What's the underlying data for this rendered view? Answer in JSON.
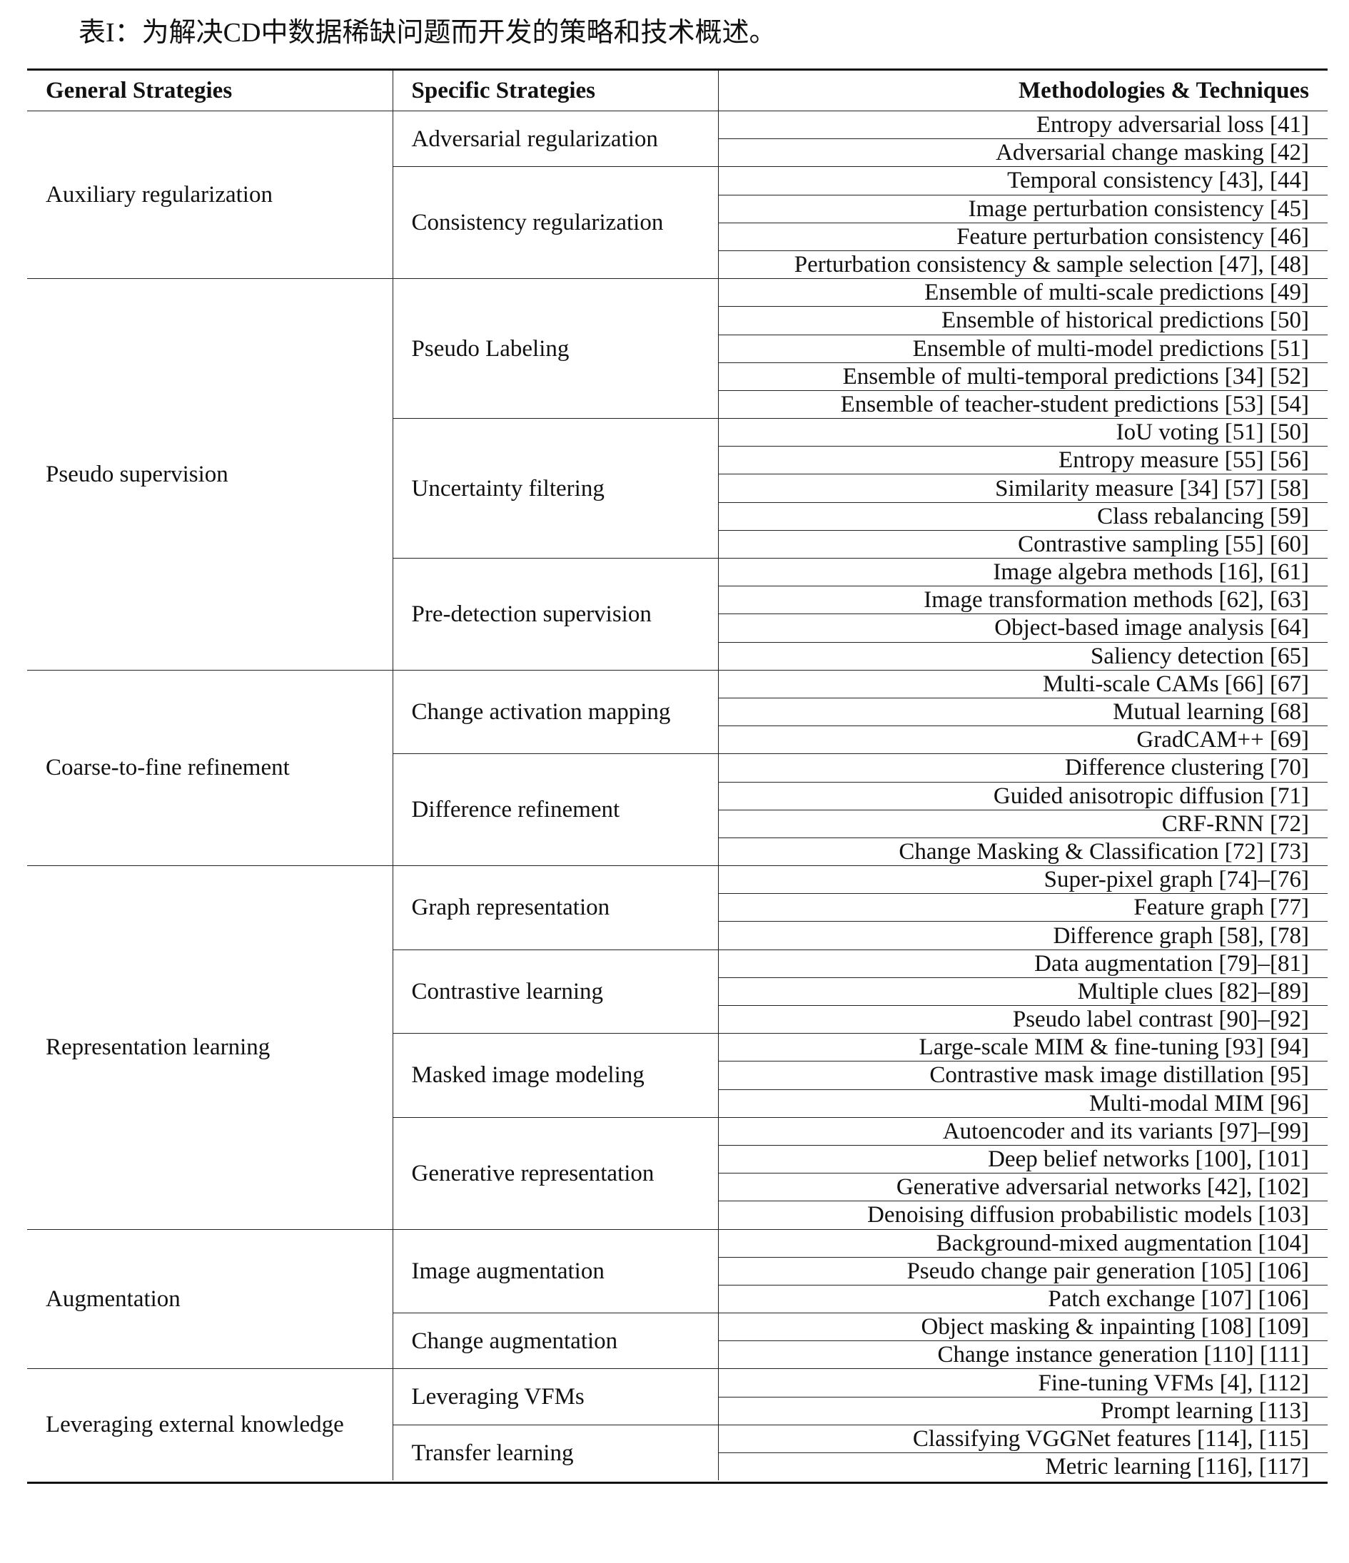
{
  "caption": "表I：为解决CD中数据稀缺问题而开发的策略和技术概述。",
  "headers": {
    "general": "General Strategies",
    "specific": "Specific Strategies",
    "methods": "Methodologies & Techniques"
  },
  "groups": [
    {
      "general": "Auxiliary regularization",
      "specifics": [
        {
          "name": "Adversarial regularization",
          "methods": [
            "Entropy adversarial loss [41]",
            "Adversarial change masking [42]"
          ]
        },
        {
          "name": "Consistency regularization",
          "methods": [
            "Temporal consistency [43], [44]",
            "Image perturbation consistency [45]",
            "Feature perturbation consistency [46]",
            "Perturbation consistency & sample selection [47], [48]"
          ]
        }
      ]
    },
    {
      "general": "Pseudo supervision",
      "specifics": [
        {
          "name": "Pseudo Labeling",
          "methods": [
            "Ensemble of multi-scale predictions [49]",
            "Ensemble of historical predictions [50]",
            "Ensemble of multi-model predictions [51]",
            "Ensemble of multi-temporal predictions [34] [52]",
            "Ensemble of teacher-student predictions [53] [54]"
          ]
        },
        {
          "name": "Uncertainty filtering",
          "methods": [
            "IoU voting [51] [50]",
            "Entropy measure [55] [56]",
            "Similarity measure [34] [57] [58]",
            "Class rebalancing [59]",
            "Contrastive sampling [55] [60]"
          ]
        },
        {
          "name": "Pre-detection supervision",
          "methods": [
            "Image algebra methods [16], [61]",
            "Image transformation methods [62], [63]",
            "Object-based image analysis [64]",
            "Saliency detection [65]"
          ]
        }
      ]
    },
    {
      "general": "Coarse-to-fine refinement",
      "specifics": [
        {
          "name": "Change activation mapping",
          "methods": [
            "Multi-scale CAMs [66] [67]",
            "Mutual learning [68]",
            "GradCAM++ [69]"
          ]
        },
        {
          "name": "Difference refinement",
          "methods": [
            "Difference clustering [70]",
            "Guided anisotropic diffusion [71]",
            "CRF-RNN [72]",
            "Change Masking & Classification [72] [73]"
          ]
        }
      ]
    },
    {
      "general": "Representation learning",
      "specifics": [
        {
          "name": "Graph representation",
          "methods": [
            "Super-pixel graph [74]–[76]",
            "Feature graph [77]",
            "Difference graph [58], [78]"
          ]
        },
        {
          "name": "Contrastive learning",
          "methods": [
            "Data augmentation [79]–[81]",
            "Multiple clues [82]–[89]",
            "Pseudo label contrast [90]–[92]"
          ]
        },
        {
          "name": "Masked image modeling",
          "methods": [
            "Large-scale MIM & fine-tuning [93] [94]",
            "Contrastive mask image distillation [95]",
            "Multi-modal MIM [96]"
          ]
        },
        {
          "name": "Generative representation",
          "methods": [
            "Autoencoder and its variants [97]–[99]",
            "Deep belief networks [100], [101]",
            "Generative adversarial networks [42], [102]",
            "Denoising diffusion probabilistic models [103]"
          ]
        }
      ]
    },
    {
      "general": "Augmentation",
      "specifics": [
        {
          "name": "Image augmentation",
          "methods": [
            "Background-mixed augmentation [104]",
            "Pseudo change pair generation [105] [106]",
            "Patch exchange [107] [106]"
          ]
        },
        {
          "name": "Change augmentation",
          "methods": [
            "Object masking & inpainting [108] [109]",
            "Change instance generation [110] [111]"
          ]
        }
      ]
    },
    {
      "general": "Leveraging external knowledge",
      "specifics": [
        {
          "name": "Leveraging VFMs",
          "methods": [
            "Fine-tuning VFMs [4], [112]",
            "Prompt learning [113]"
          ]
        },
        {
          "name": "Transfer learning",
          "methods": [
            "Classifying VGGNet features [114], [115]",
            "Metric learning [116], [117]"
          ]
        }
      ]
    }
  ]
}
